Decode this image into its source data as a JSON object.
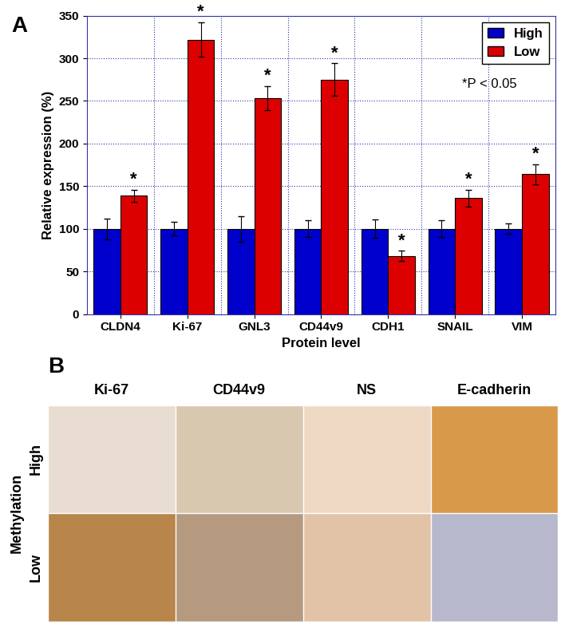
{
  "chart_data": {
    "type": "bar",
    "panel_label": "A",
    "x_label": "Protein level",
    "y_label": "Relative expression (%)",
    "categories": [
      "CLDN4",
      "Ki-67",
      "GNL3",
      "CD44v9",
      "CDH1",
      "SNAIL",
      "VIM"
    ],
    "series": [
      {
        "name": "High",
        "color": "#0000cc",
        "values": [
          100,
          100,
          100,
          100,
          100,
          100,
          100
        ],
        "errors": [
          12,
          8,
          15,
          10,
          11,
          10,
          6
        ]
      },
      {
        "name": "Low",
        "color": "#dd0000",
        "values": [
          139,
          322,
          253,
          275,
          68,
          136,
          164
        ],
        "errors": [
          7,
          20,
          14,
          19,
          6,
          10,
          12
        ],
        "significance": [
          "*",
          "*",
          "*",
          "*",
          "*",
          "*",
          "*"
        ]
      }
    ],
    "annotations": [
      "*P < 0.05"
    ],
    "ylim": [
      0,
      350
    ],
    "yticks": [
      0,
      50,
      100,
      150,
      200,
      250,
      300,
      350
    ],
    "grid": true,
    "legend": "upper right"
  },
  "image_panel": {
    "label": "B",
    "columns": [
      "Ki-67",
      "CD44v9",
      "NS",
      "E-cadherin"
    ],
    "row_title": "Methylation",
    "rows": [
      "High",
      "Low"
    ]
  }
}
